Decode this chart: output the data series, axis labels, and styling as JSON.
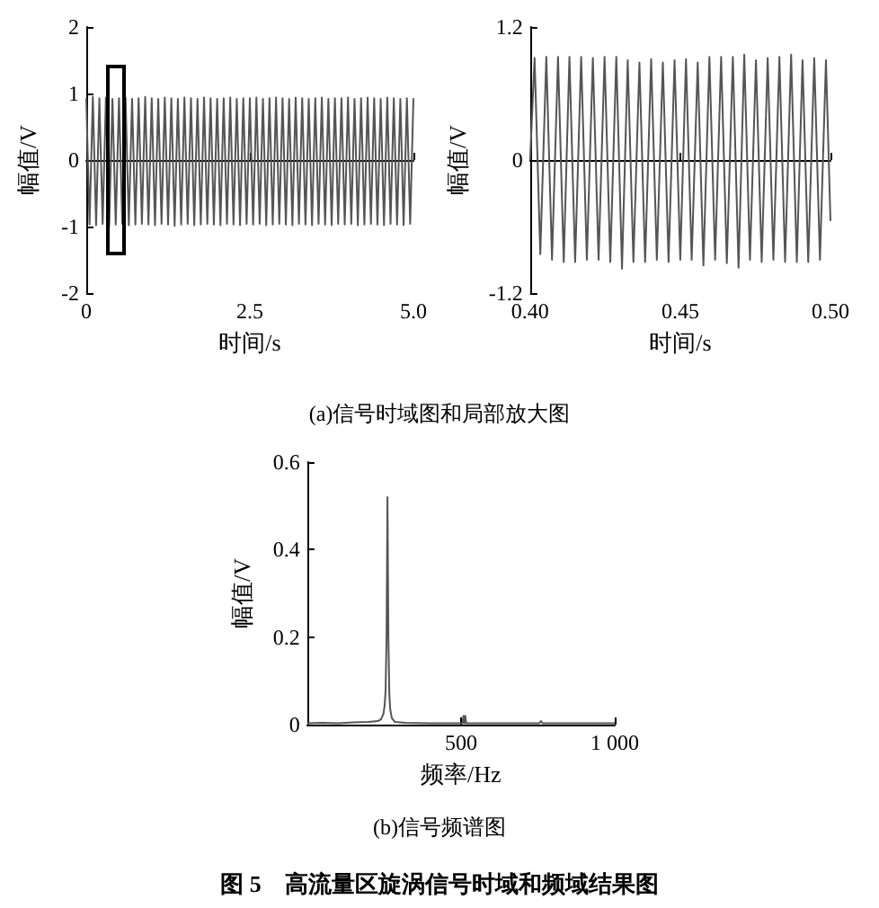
{
  "chart_data": [
    {
      "type": "line",
      "xlabel": "时间/s",
      "ylabel": "幅值/V",
      "color": "#555555",
      "xlim": [
        0,
        5
      ],
      "xticks": [
        0,
        2.5,
        {
          "value": 5,
          "label": "5.0"
        }
      ],
      "ylim": [
        -2,
        2
      ],
      "yticks": [
        -2,
        -1,
        0,
        1,
        2
      ],
      "annotations": [
        "(a)信号时域图和局部放大图"
      ],
      "x": [
        0,
        0.05,
        0.1,
        0.15,
        0.2,
        0.25,
        0.3,
        0.35,
        0.4,
        0.45,
        0.5,
        0.55,
        0.6,
        0.65,
        0.7,
        0.75,
        0.8,
        0.85,
        0.9,
        0.95,
        1,
        1.05,
        1.1,
        1.15,
        1.2,
        1.25,
        1.3,
        1.35,
        1.4,
        1.45,
        1.5,
        1.55,
        1.6,
        1.65,
        1.7,
        1.75,
        1.8,
        1.85,
        1.9,
        1.95,
        2,
        2.05,
        2.1,
        2.15,
        2.2,
        2.25,
        2.3,
        2.35,
        2.4,
        2.45,
        2.5,
        2.55,
        2.6,
        2.65,
        2.7,
        2.75,
        2.8,
        2.85,
        2.9,
        2.95,
        3,
        3.05,
        3.1,
        3.15,
        3.2,
        3.25,
        3.3,
        3.35,
        3.4,
        3.45,
        3.5,
        3.55,
        3.6,
        3.65,
        3.7,
        3.75,
        3.8,
        3.85,
        3.9,
        3.95,
        4,
        4.05,
        4.1,
        4.15,
        4.2,
        4.25,
        4.3,
        4.35,
        4.4,
        4.45,
        4.5,
        4.55,
        4.6,
        4.65,
        4.7,
        4.75,
        4.8,
        4.85,
        4.9,
        4.95,
        5
      ],
      "values": [
        0.93,
        -0.97,
        0.95,
        -0.98,
        0.93,
        -0.96,
        0.94,
        -0.99,
        0.92,
        -0.97,
        0.93,
        -0.96,
        0.94,
        -0.98,
        0.92,
        -0.97,
        0.93,
        -0.96,
        0.95,
        -0.97,
        0.93,
        -0.98,
        0.92,
        -0.96,
        0.94,
        -0.97,
        0.93,
        -0.99,
        0.92,
        -0.97,
        0.94,
        -0.96,
        0.93,
        -0.98,
        0.92,
        -0.97,
        0.94,
        -0.96,
        0.93,
        -0.97,
        0.92,
        -0.98,
        0.93,
        -0.96,
        0.94,
        -0.97,
        0.92,
        -0.98,
        0.93,
        -0.96,
        0.93,
        -0.97,
        0.94,
        -0.96,
        0.92,
        -0.98,
        0.93,
        -0.97,
        0.94,
        -0.96,
        0.93,
        -0.97,
        0.92,
        -0.98,
        0.94,
        -0.96,
        0.93,
        -0.97,
        0.92,
        -0.98,
        0.93,
        -0.96,
        0.94,
        -0.97,
        0.92,
        -0.98,
        0.93,
        -0.96,
        0.93,
        -0.97,
        0.94,
        -0.96,
        0.92,
        -0.98,
        0.93,
        -0.97,
        0.94,
        -0.96,
        0.93,
        -0.97,
        0.92,
        -0.98,
        0.94,
        -0.96,
        0.93,
        -0.97,
        0.92,
        -0.98,
        0.93,
        -0.96,
        0.93
      ]
    },
    {
      "type": "line",
      "xlabel": "时间/s",
      "ylabel": "幅值/V",
      "color": "#555555",
      "xlim": [
        0.4,
        0.5
      ],
      "xticks": [
        {
          "value": 0.4,
          "label": "0.40"
        },
        0.45,
        {
          "value": 0.5,
          "label": "0.50"
        }
      ],
      "ylim": [
        -1.2,
        1.2
      ],
      "yticks": [
        -1.2,
        0,
        1.2
      ],
      "x": [
        0.4,
        0.4015,
        0.4034,
        0.4054,
        0.4073,
        0.4093,
        0.4112,
        0.4131,
        0.415,
        0.417,
        0.4189,
        0.4209,
        0.4228,
        0.4248,
        0.4267,
        0.4287,
        0.4306,
        0.4325,
        0.4344,
        0.4364,
        0.4383,
        0.4403,
        0.4422,
        0.4442,
        0.4461,
        0.4481,
        0.45,
        0.4519,
        0.4538,
        0.4558,
        0.4577,
        0.4597,
        0.4616,
        0.4636,
        0.4655,
        0.4675,
        0.4694,
        0.4713,
        0.4732,
        0.4752,
        0.4771,
        0.4791,
        0.481,
        0.483,
        0.4849,
        0.4869,
        0.4888,
        0.4907,
        0.4926,
        0.4946,
        0.4965,
        0.4985,
        0.5
      ],
      "values": [
        0,
        0.92,
        -0.85,
        0.93,
        -0.9,
        0.93,
        -0.92,
        0.93,
        -0.92,
        0.93,
        -0.9,
        0.92,
        -0.9,
        0.93,
        -0.92,
        0.93,
        -0.98,
        0.9,
        -0.92,
        0.88,
        -0.92,
        0.91,
        -0.9,
        0.88,
        -0.92,
        0.9,
        -0.9,
        0.91,
        -0.9,
        0.88,
        -0.95,
        0.93,
        -0.9,
        0.93,
        -0.93,
        0.93,
        -0.97,
        0.95,
        -0.9,
        0.9,
        -0.92,
        0.92,
        -0.9,
        0.93,
        -0.92,
        0.95,
        -0.92,
        0.9,
        -0.92,
        0.92,
        -0.9,
        0.9,
        -0.55
      ]
    },
    {
      "type": "line",
      "xlabel": "频率/Hz",
      "ylabel": "幅值/V",
      "color": "#555555",
      "xlim": [
        0,
        1000
      ],
      "xticks": [
        500,
        {
          "value": 1000,
          "label": "1 000"
        }
      ],
      "ylim": [
        0,
        0.6
      ],
      "yticks": [
        0,
        0.2,
        0.4,
        0.6
      ],
      "annotations": [
        "(b)信号频谱图",
        "图 5　高流量区旋涡信号时域和频域结果图"
      ],
      "x": [
        0,
        50,
        100,
        150,
        200,
        230,
        240,
        248,
        252,
        255,
        258,
        261,
        264,
        267,
        270,
        275,
        285,
        320,
        400,
        480,
        505,
        508,
        511,
        514,
        517,
        520,
        600,
        700,
        755,
        760,
        765,
        850,
        1000
      ],
      "values": [
        0.003,
        0.004,
        0.003,
        0.005,
        0.006,
        0.008,
        0.012,
        0.025,
        0.045,
        0.08,
        0.2,
        0.52,
        0.2,
        0.07,
        0.035,
        0.015,
        0.006,
        0.004,
        0.003,
        0.003,
        0.003,
        0.02,
        0.003,
        0.02,
        0.003,
        0.003,
        0.003,
        0.003,
        0.003,
        0.008,
        0.003,
        0.003,
        0.003
      ]
    }
  ]
}
